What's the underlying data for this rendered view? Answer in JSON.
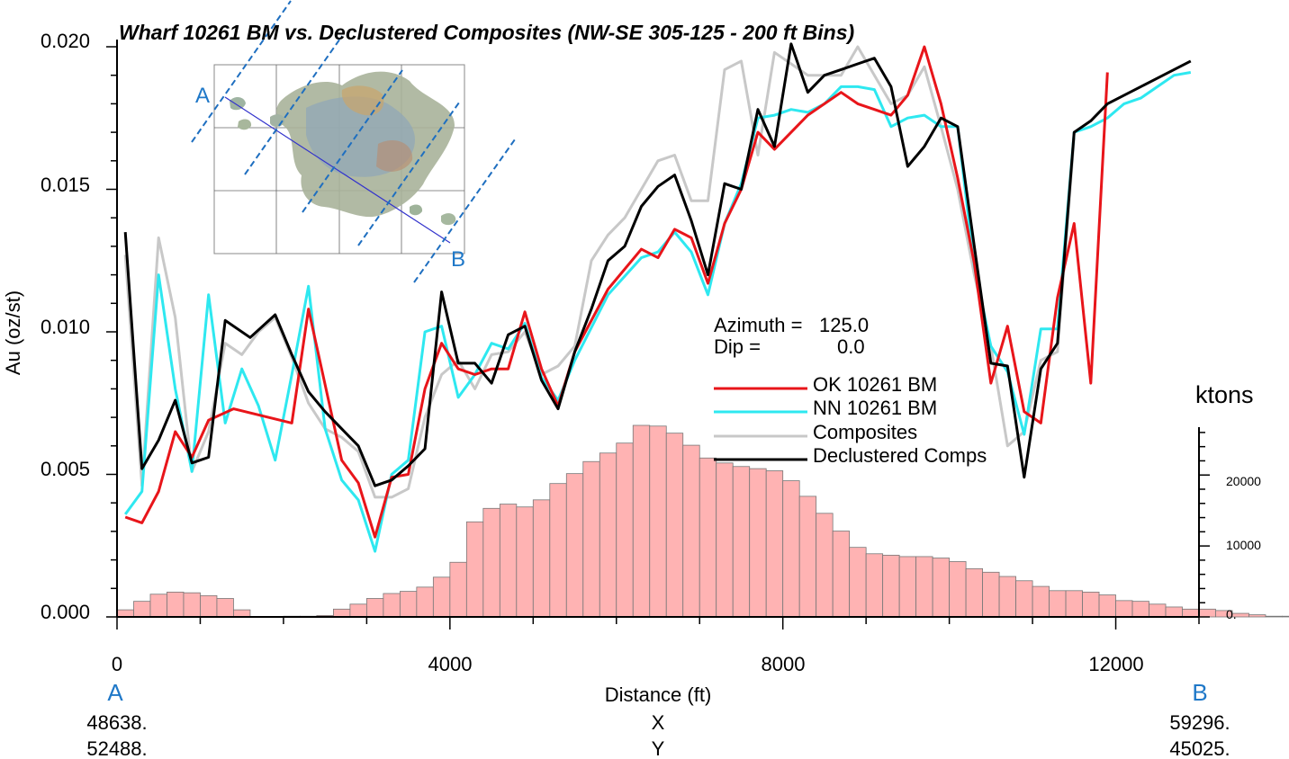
{
  "chart_data": {
    "type": "line",
    "title": "Wharf 10261 BM vs. Declustered Composites (NW-SE 305-125 - 200 ft Bins)",
    "xlabel": "Distance (ft)",
    "ylabel": "Au (oz/st)",
    "y2label": "ktons",
    "xlim": [
      0,
      13000
    ],
    "ylim": [
      0,
      0.02
    ],
    "y2lim": [
      0,
      27000
    ],
    "x_ticks": [
      "0",
      "4000",
      "8000",
      "12000"
    ],
    "y_ticks": [
      "0.000",
      "0.005",
      "0.010",
      "0.015",
      "0.020"
    ],
    "y2_ticks": [
      "0.",
      "10000",
      "20000"
    ],
    "grid": false,
    "annotation": {
      "azimuth_label": "Azimuth =",
      "azimuth_value": "125.0",
      "dip_label": "Dip =",
      "dip_value": "0.0"
    },
    "section": {
      "start_label": "A",
      "end_label": "B",
      "x_label": "X",
      "y_label": "Y",
      "start_x": "48638.",
      "start_y": "52488.",
      "end_x": "59296.",
      "end_y": "45025."
    },
    "series": [
      {
        "name": "OK 10261 BM",
        "color": "#e8151a",
        "x": [
          100,
          300,
          500,
          700,
          900,
          1100,
          1400,
          2100,
          2300,
          2700,
          2900,
          3100,
          3300,
          3500,
          3700,
          3900,
          4100,
          4300,
          4500,
          4700,
          4900,
          5100,
          5300,
          5500,
          5900,
          6300,
          6500,
          6700,
          6900,
          7100,
          7300,
          7500,
          7700,
          7900,
          8100,
          8300,
          8500,
          8700,
          8900,
          9100,
          9300,
          9500,
          9700,
          9900,
          10100,
          10300,
          10500,
          10700,
          10900,
          11100,
          11300,
          11500,
          11700,
          11900
        ],
        "y": [
          0.0035,
          0.0033,
          0.0044,
          0.0065,
          0.0056,
          0.0069,
          0.0073,
          0.0068,
          0.0108,
          0.0055,
          0.0047,
          0.0028,
          0.0049,
          0.005,
          0.008,
          0.0096,
          0.0087,
          0.0085,
          0.0087,
          0.0087,
          0.0107,
          0.0087,
          0.0074,
          0.0093,
          0.0115,
          0.0129,
          0.0126,
          0.0136,
          0.0133,
          0.0117,
          0.0138,
          0.015,
          0.017,
          0.0164,
          0.017,
          0.0176,
          0.018,
          0.0184,
          0.018,
          0.0178,
          0.0176,
          0.0183,
          0.02,
          0.018,
          0.0154,
          0.0124,
          0.0082,
          0.0102,
          0.0072,
          0.0068,
          0.0112,
          0.0138,
          0.0082,
          0.0191
        ]
      },
      {
        "name": "NN 10261 BM",
        "color": "#2ee8f0",
        "x": [
          100,
          300,
          500,
          700,
          900,
          1100,
          1300,
          1500,
          1700,
          1900,
          2100,
          2300,
          2500,
          2700,
          2900,
          3100,
          3300,
          3500,
          3700,
          3900,
          4100,
          4300,
          4500,
          4700,
          4900,
          5100,
          5300,
          5500,
          5900,
          6300,
          6500,
          6700,
          6900,
          7100,
          7300,
          7500,
          7700,
          7900,
          8100,
          8300,
          8500,
          8700,
          8900,
          9100,
          9300,
          9500,
          9700,
          9900,
          10100,
          10300,
          10500,
          10700,
          10900,
          11100,
          11300,
          11500,
          11700,
          11900,
          12100,
          12300,
          12500,
          12700,
          12900
        ],
        "y": [
          0.0036,
          0.0044,
          0.012,
          0.008,
          0.0051,
          0.0113,
          0.0068,
          0.0087,
          0.0074,
          0.0055,
          0.0085,
          0.0116,
          0.0066,
          0.0048,
          0.0041,
          0.0023,
          0.005,
          0.0055,
          0.01,
          0.0102,
          0.0077,
          0.0085,
          0.0096,
          0.0094,
          0.0103,
          0.0084,
          0.0076,
          0.009,
          0.0113,
          0.0126,
          0.0128,
          0.0135,
          0.0128,
          0.0113,
          0.0138,
          0.0152,
          0.0175,
          0.0176,
          0.0178,
          0.0177,
          0.018,
          0.0186,
          0.0186,
          0.0185,
          0.0172,
          0.0175,
          0.0176,
          0.0172,
          0.0172,
          0.0123,
          0.0095,
          0.0086,
          0.0064,
          0.0101,
          0.0101,
          0.017,
          0.0172,
          0.0175,
          0.018,
          0.0182,
          0.0186,
          0.019,
          0.0191
        ]
      },
      {
        "name": "Composites",
        "color": "#c8c8c8",
        "x": [
          100,
          300,
          500,
          700,
          900,
          1100,
          1300,
          1500,
          1700,
          1900,
          2100,
          2300,
          2500,
          2700,
          2900,
          3100,
          3300,
          3500,
          3700,
          3900,
          4100,
          4300,
          4500,
          4700,
          4900,
          5100,
          5300,
          5500,
          5700,
          5900,
          6100,
          6300,
          6500,
          6700,
          6900,
          7100,
          7300,
          7500,
          7700,
          7900,
          8100,
          8300,
          8500,
          8700,
          8900,
          9100,
          9300,
          9500,
          9700,
          9900,
          10100,
          10300,
          10500,
          10700,
          10900,
          11100,
          11300,
          11500
        ],
        "y": [
          0.0127,
          0.0046,
          0.0133,
          0.0105,
          0.0051,
          0.0065,
          0.0096,
          0.0092,
          0.01,
          0.0105,
          0.0091,
          0.0075,
          0.0066,
          0.0063,
          0.0058,
          0.0042,
          0.0042,
          0.0045,
          0.007,
          0.0085,
          0.009,
          0.008,
          0.0092,
          0.0093,
          0.01,
          0.0085,
          0.0088,
          0.0095,
          0.0125,
          0.0134,
          0.014,
          0.015,
          0.016,
          0.0162,
          0.0146,
          0.0146,
          0.0192,
          0.0195,
          0.0162,
          0.0198,
          0.0194,
          0.019,
          0.019,
          0.019,
          0.02,
          0.019,
          0.018,
          0.0183,
          0.0193,
          0.0172,
          0.015,
          0.012,
          0.0095,
          0.006,
          0.0065,
          0.009,
          0.0093,
          0.0168
        ]
      },
      {
        "name": "Declustered Comps",
        "color": "#000000",
        "x": [
          100,
          300,
          500,
          700,
          900,
          1100,
          1300,
          1600,
          1900,
          2100,
          2300,
          2500,
          2700,
          2900,
          3100,
          3300,
          3500,
          3700,
          3900,
          4100,
          4300,
          4500,
          4700,
          4900,
          5100,
          5300,
          5500,
          5700,
          5900,
          6100,
          6300,
          6500,
          6700,
          6900,
          7100,
          7300,
          7500,
          7700,
          7900,
          8100,
          8300,
          8500,
          8700,
          8900,
          9100,
          9300,
          9500,
          9700,
          9900,
          10100,
          10300,
          10500,
          10700,
          10900,
          11100,
          11300,
          11500,
          11700,
          11900,
          12100,
          12300,
          12500,
          12700,
          12900
        ],
        "y": [
          0.0135,
          0.0052,
          0.0062,
          0.0076,
          0.0054,
          0.0056,
          0.0104,
          0.0098,
          0.0106,
          0.0092,
          0.0079,
          0.0072,
          0.0066,
          0.006,
          0.0046,
          0.0048,
          0.0053,
          0.0059,
          0.0114,
          0.0089,
          0.0089,
          0.0082,
          0.0099,
          0.0102,
          0.0083,
          0.0073,
          0.0093,
          0.0108,
          0.0125,
          0.013,
          0.0144,
          0.0151,
          0.0155,
          0.0139,
          0.012,
          0.0152,
          0.015,
          0.0178,
          0.0165,
          0.0201,
          0.0184,
          0.019,
          0.0192,
          0.0194,
          0.0196,
          0.0186,
          0.0158,
          0.0165,
          0.0175,
          0.0172,
          0.013,
          0.0089,
          0.0088,
          0.0049,
          0.0087,
          0.0096,
          0.017,
          0.0174,
          0.018,
          0.0183,
          0.0186,
          0.0189,
          0.0192,
          0.0195
        ]
      }
    ],
    "histogram": {
      "name": "ktons",
      "color": "#ffb3b3",
      "bin_start": 0,
      "bin_width": 200,
      "values": [
        1000,
        2200,
        3200,
        3500,
        3400,
        3000,
        2600,
        1000,
        0,
        0,
        100,
        100,
        200,
        1100,
        1800,
        2600,
        3300,
        3600,
        4200,
        5600,
        7700,
        13400,
        15300,
        15900,
        15500,
        16500,
        18800,
        20200,
        21900,
        23100,
        24500,
        27000,
        26900,
        25900,
        24200,
        22400,
        21700,
        21200,
        20900,
        20600,
        19200,
        17000,
        14600,
        12100,
        9800,
        8900,
        8700,
        8500,
        8500,
        8300,
        7800,
        6800,
        6300,
        5700,
        5100,
        4300,
        3700,
        3700,
        3500,
        3100,
        2300,
        2200,
        1800,
        1400,
        1100,
        1100,
        900,
        500,
        300,
        100,
        100,
        100,
        300,
        400,
        600,
        800,
        800,
        700,
        500,
        200,
        0,
        0,
        0,
        0
      ]
    },
    "legend_position": "right-center"
  }
}
